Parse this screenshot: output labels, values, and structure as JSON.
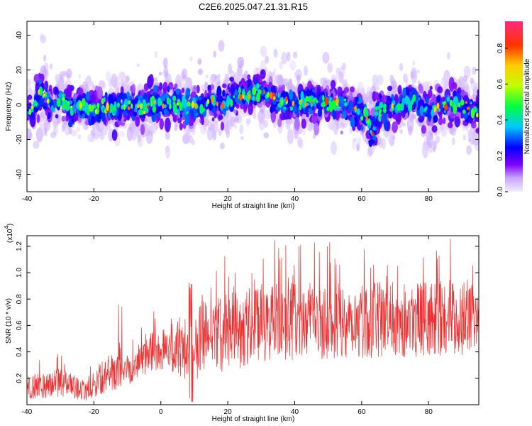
{
  "title": "C2E6.2025.047.21.31.R15",
  "chart_data": [
    {
      "type": "heatmap",
      "xlabel": "Height of straight line (km)",
      "ylabel": "Frequency (Hz)",
      "xlim": [
        -40,
        95
      ],
      "ylim": [
        -50,
        48
      ],
      "xticks": [
        -40,
        -20,
        0,
        20,
        40,
        60,
        80
      ],
      "yticks": [
        -40,
        -20,
        0,
        20,
        40
      ],
      "colorbar": {
        "label": "Normalized spectral amplitude",
        "range": [
          0.0,
          0.95
        ],
        "ticks": [
          0.0,
          0.2,
          0.4,
          0.6,
          0.8
        ],
        "tick_labels": [
          "0.0",
          "0.2",
          "0.4",
          "0.6",
          "0.8"
        ]
      },
      "center_track": [
        [
          -40,
          -3
        ],
        [
          -38,
          -2
        ],
        [
          -36,
          8
        ],
        [
          -34,
          3
        ],
        [
          -32,
          -1
        ],
        [
          -30,
          4
        ],
        [
          -27,
          -2
        ],
        [
          -24,
          0
        ],
        [
          -20,
          -4
        ],
        [
          -17,
          -2
        ],
        [
          -14,
          -3
        ],
        [
          -11,
          0
        ],
        [
          -8,
          -1
        ],
        [
          -5,
          -3
        ],
        [
          -3,
          2
        ],
        [
          0,
          0
        ],
        [
          4,
          1
        ],
        [
          8,
          -1
        ],
        [
          12,
          0
        ],
        [
          15,
          2
        ],
        [
          18,
          0
        ],
        [
          21,
          3
        ],
        [
          24,
          5
        ],
        [
          27,
          6
        ],
        [
          30,
          8
        ],
        [
          33,
          5
        ],
        [
          36,
          2
        ],
        [
          40,
          0
        ],
        [
          44,
          1
        ],
        [
          48,
          2
        ],
        [
          52,
          0
        ],
        [
          56,
          1
        ],
        [
          58,
          -3
        ],
        [
          61,
          -6
        ],
        [
          63,
          -16
        ],
        [
          65,
          -4
        ],
        [
          68,
          -2
        ],
        [
          71,
          -1
        ],
        [
          74,
          3
        ],
        [
          77,
          0
        ],
        [
          80,
          -4
        ],
        [
          83,
          -2
        ],
        [
          86,
          -1
        ],
        [
          89,
          1
        ],
        [
          92,
          -3
        ],
        [
          95,
          -4
        ]
      ]
    },
    {
      "type": "line",
      "xlabel": "Height of straight line (km)",
      "ylabel": "SNR (10 * v/v)",
      "y_multiplier": "(x10",
      "y_multiplier_exp": "4",
      "y_multiplier_close": ")",
      "xlim": [
        -40,
        95
      ],
      "ylim": [
        0.0,
        1.28
      ],
      "xticks": [
        -40,
        -20,
        0,
        20,
        40,
        60,
        80
      ],
      "yticks": [
        0.2,
        0.4,
        0.6,
        0.8,
        1.0,
        1.2
      ],
      "ytick_labels": [
        "0.2",
        "0.4",
        "0.6",
        "0.8",
        "1.0",
        "1.2"
      ],
      "color": "#ee3030",
      "envelope": {
        "x": [
          -40,
          -30,
          -22,
          -18,
          -12,
          -8,
          -4,
          0,
          4,
          8,
          12,
          20,
          30,
          40,
          60,
          80,
          95
        ],
        "mean": [
          0.13,
          0.17,
          0.1,
          0.2,
          0.25,
          0.3,
          0.38,
          0.42,
          0.45,
          0.4,
          0.5,
          0.55,
          0.62,
          0.63,
          0.64,
          0.65,
          0.67
        ],
        "spread": [
          0.1,
          0.12,
          0.08,
          0.14,
          0.14,
          0.14,
          0.16,
          0.2,
          0.25,
          0.3,
          0.32,
          0.33,
          0.34,
          0.33,
          0.32,
          0.32,
          0.32
        ]
      }
    }
  ]
}
